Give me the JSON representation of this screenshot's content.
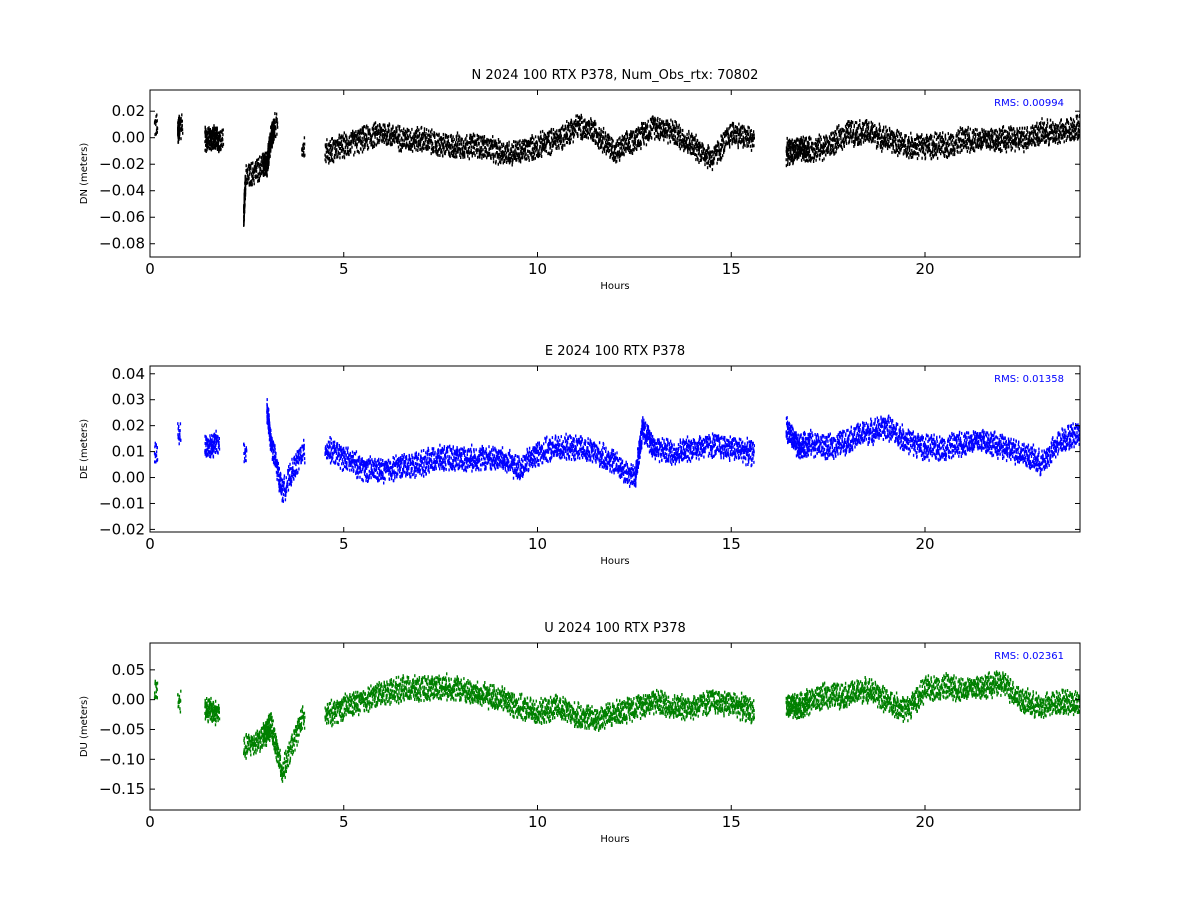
{
  "chart_data": [
    {
      "type": "scatter",
      "title": "N 2024 100 RTX  P378, Num_Obs_rtx: 70802",
      "xlabel": "Hours",
      "ylabel": "DN (meters)",
      "xlim": [
        0,
        24
      ],
      "ylim": [
        -0.09,
        0.036
      ],
      "xticks": [
        0,
        5,
        10,
        15,
        20
      ],
      "yticks": [
        0.02,
        0.0,
        -0.02,
        -0.04,
        -0.06,
        -0.08
      ],
      "ytick_labels": [
        "0.02",
        "0.00",
        "−0.02",
        "−0.04",
        "−0.06",
        "−0.08"
      ],
      "annotation": "RMS:  0.00994",
      "color": "#000000",
      "series": [
        {
          "x": [
            0.1,
            0.7,
            0.75,
            1.4,
            1.6,
            1.8,
            2.4,
            2.45,
            2.9,
            3.0,
            3.1,
            3.2,
            3.9,
            4.5,
            5.0,
            5.5,
            6.0,
            6.5,
            7.0,
            7.5,
            8.0,
            8.5,
            9.0,
            9.5,
            10.0,
            10.5,
            11.0,
            11.5,
            12.0,
            12.5,
            13.0,
            13.5,
            14.0,
            14.5,
            15.0,
            15.5,
            16.4,
            16.7,
            17.0,
            17.5,
            18.0,
            18.5,
            19.0,
            19.5,
            20.0,
            20.5,
            21.0,
            21.5,
            22.0,
            22.5,
            23.0,
            23.5,
            24.0
          ],
          "y": [
            0.01,
            0.005,
            0.01,
            0.0,
            0.0,
            0.0,
            -0.06,
            -0.03,
            -0.02,
            -0.02,
            0.0,
            0.01,
            -0.005,
            -0.01,
            -0.005,
            0.0,
            0.005,
            0.0,
            0.0,
            -0.005,
            -0.005,
            -0.005,
            -0.01,
            -0.01,
            -0.005,
            0.0,
            0.01,
            0.005,
            -0.01,
            0.0,
            0.01,
            0.005,
            -0.005,
            -0.015,
            0.005,
            0.0,
            -0.01,
            -0.008,
            -0.008,
            -0.005,
            0.005,
            0.005,
            0.0,
            -0.005,
            -0.005,
            -0.005,
            0.0,
            0.0,
            0.0,
            0.0,
            0.005,
            0.005,
            0.01
          ]
        }
      ]
    },
    {
      "type": "scatter",
      "title": "E 2024 100 RTX  P378",
      "xlabel": "Hours",
      "ylabel": "DE (meters)",
      "xlim": [
        0,
        24
      ],
      "ylim": [
        -0.021,
        0.043
      ],
      "xticks": [
        0,
        5,
        10,
        15,
        20
      ],
      "yticks": [
        0.04,
        0.03,
        0.02,
        0.01,
        0.0,
        -0.01,
        -0.02
      ],
      "ytick_labels": [
        "0.04",
        "0.03",
        "0.02",
        "0.01",
        "0.00",
        "−0.01",
        "−0.02"
      ],
      "annotation": "RMS:  0.01358",
      "color": "#0000ff",
      "series": [
        {
          "x": [
            0.1,
            0.7,
            1.4,
            1.7,
            2.4,
            3.0,
            3.1,
            3.4,
            3.9,
            4.5,
            5.0,
            5.5,
            6.0,
            6.5,
            7.0,
            7.5,
            8.0,
            8.5,
            9.0,
            9.5,
            10.0,
            10.5,
            11.0,
            11.5,
            12.0,
            12.5,
            12.7,
            13.0,
            13.5,
            14.0,
            14.5,
            15.0,
            15.5,
            16.4,
            16.7,
            17.0,
            17.5,
            18.0,
            18.5,
            19.0,
            19.5,
            20.0,
            20.5,
            21.0,
            21.5,
            22.0,
            22.5,
            23.0,
            23.5,
            24.0
          ],
          "y": [
            0.01,
            0.018,
            0.012,
            0.014,
            0.01,
            0.027,
            0.015,
            -0.005,
            0.01,
            0.012,
            0.008,
            0.004,
            0.003,
            0.005,
            0.006,
            0.008,
            0.008,
            0.008,
            0.008,
            0.004,
            0.01,
            0.012,
            0.012,
            0.01,
            0.006,
            0.0,
            0.02,
            0.012,
            0.01,
            0.012,
            0.013,
            0.012,
            0.01,
            0.02,
            0.012,
            0.014,
            0.012,
            0.015,
            0.018,
            0.02,
            0.015,
            0.012,
            0.012,
            0.014,
            0.015,
            0.012,
            0.01,
            0.006,
            0.015,
            0.018
          ]
        }
      ]
    },
    {
      "type": "scatter",
      "title": "U 2024 100 RTX  P378",
      "xlabel": "Hours",
      "ylabel": "DU (meters)",
      "xlim": [
        0,
        24
      ],
      "ylim": [
        -0.185,
        0.095
      ],
      "xticks": [
        0,
        5,
        10,
        15,
        20
      ],
      "yticks": [
        0.05,
        0.0,
        -0.05,
        -0.1,
        -0.15
      ],
      "ytick_labels": [
        "0.05",
        "0.00",
        "−0.05",
        "−0.10",
        "−0.15"
      ],
      "annotation": "RMS:  0.02361",
      "color": "#008000",
      "series": [
        {
          "x": [
            0.1,
            0.7,
            1.4,
            1.7,
            2.4,
            2.9,
            3.1,
            3.4,
            3.9,
            4.5,
            5.0,
            5.5,
            6.0,
            6.5,
            7.0,
            7.5,
            8.0,
            8.5,
            9.0,
            9.5,
            10.0,
            10.5,
            11.0,
            11.5,
            12.0,
            12.5,
            13.0,
            13.5,
            14.0,
            14.5,
            15.0,
            15.5,
            16.4,
            16.7,
            17.0,
            17.5,
            18.0,
            18.5,
            19.0,
            19.5,
            20.0,
            20.5,
            21.0,
            21.5,
            22.0,
            22.5,
            23.0,
            23.5,
            24.0
          ],
          "y": [
            0.02,
            0.0,
            -0.01,
            -0.02,
            -0.08,
            -0.06,
            -0.04,
            -0.12,
            -0.03,
            -0.025,
            -0.01,
            0.0,
            0.015,
            0.02,
            0.02,
            0.025,
            0.02,
            0.01,
            0.005,
            -0.01,
            -0.02,
            -0.01,
            -0.025,
            -0.03,
            -0.02,
            -0.01,
            0.0,
            -0.01,
            -0.01,
            0.0,
            -0.005,
            -0.015,
            -0.01,
            -0.01,
            0.0,
            0.01,
            0.01,
            0.02,
            0.0,
            -0.015,
            0.02,
            0.025,
            0.02,
            0.025,
            0.03,
            0.0,
            -0.01,
            0.0,
            -0.005
          ]
        }
      ]
    }
  ]
}
